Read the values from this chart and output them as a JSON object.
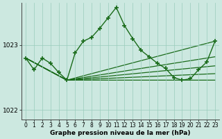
{
  "xlabel": "Graphe pression niveau de la mer (hPa)",
  "background_color": "#cce8e0",
  "plot_bg_color": "#cce8e0",
  "grid_color": "#99ccbb",
  "line_color": "#1a6b1a",
  "ylim": [
    1021.85,
    1023.65
  ],
  "yticks": [
    1022,
    1023
  ],
  "xlim": [
    -0.5,
    23.5
  ],
  "xticks": [
    0,
    1,
    2,
    3,
    4,
    5,
    6,
    7,
    8,
    9,
    10,
    11,
    12,
    13,
    14,
    15,
    16,
    17,
    18,
    19,
    20,
    21,
    22,
    23
  ],
  "main_x": [
    0,
    1,
    2,
    3,
    4,
    5,
    6,
    7,
    8,
    9,
    10,
    11,
    12,
    13,
    14,
    15,
    16,
    17,
    18,
    19,
    20,
    21,
    22,
    23
  ],
  "main_y": [
    1022.8,
    1022.62,
    1022.8,
    1022.72,
    1022.58,
    1022.46,
    1022.88,
    1023.06,
    1023.12,
    1023.26,
    1023.42,
    1023.58,
    1023.3,
    1023.1,
    1022.92,
    1022.82,
    1022.72,
    1022.64,
    1022.5,
    1022.46,
    1022.48,
    1022.62,
    1022.74,
    1023.06
  ],
  "fan_lines": [
    {
      "x": [
        0,
        5,
        23
      ],
      "y": [
        1022.8,
        1022.46,
        1022.46
      ]
    },
    {
      "x": [
        0,
        5,
        23
      ],
      "y": [
        1022.8,
        1022.46,
        1022.56
      ]
    },
    {
      "x": [
        0,
        5,
        23
      ],
      "y": [
        1022.8,
        1022.46,
        1022.68
      ]
    },
    {
      "x": [
        0,
        5,
        23
      ],
      "y": [
        1022.8,
        1022.46,
        1022.82
      ]
    },
    {
      "x": [
        0,
        5,
        23
      ],
      "y": [
        1022.8,
        1022.46,
        1023.06
      ]
    }
  ]
}
